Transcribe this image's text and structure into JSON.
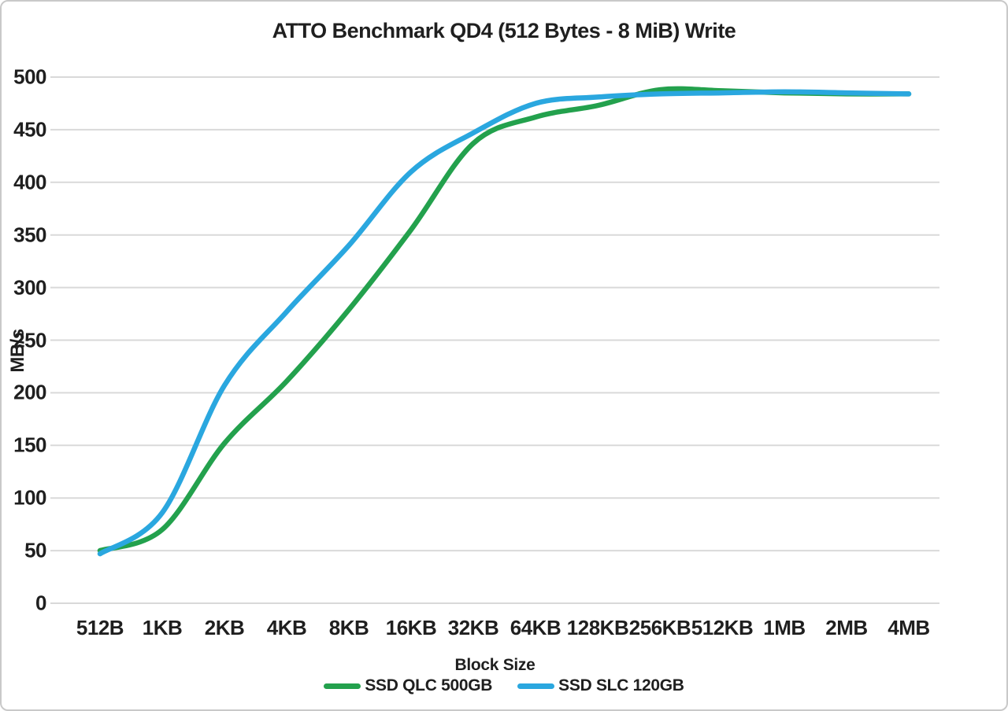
{
  "chart_data": {
    "type": "line",
    "title": "ATTO Benchmark QD4 (512 Bytes - 8 MiB) Write",
    "xlabel": "Block Size",
    "ylabel": "MB/s",
    "categories": [
      "512B",
      "1KB",
      "2KB",
      "4KB",
      "8KB",
      "16KB",
      "32KB",
      "64KB",
      "128KB",
      "256KB",
      "512KB",
      "1MB",
      "2MB",
      "4MB"
    ],
    "series": [
      {
        "name": "SSD QLC 500GB",
        "color": "#23a14d",
        "values": [
          50,
          70,
          152,
          211,
          279,
          355,
          437,
          462,
          473,
          488,
          487,
          485,
          484,
          484
        ]
      },
      {
        "name": "SSD SLC 120GB",
        "color": "#2aa7df",
        "values": [
          47,
          86,
          207,
          277,
          340,
          410,
          447,
          475,
          481,
          484,
          485,
          486,
          485,
          484
        ]
      }
    ],
    "ylim": [
      0,
      500
    ],
    "ytick_step": 50,
    "yticks": [
      "0",
      "50",
      "100",
      "150",
      "200",
      "250",
      "300",
      "350",
      "400",
      "450",
      "500"
    ],
    "grid": true,
    "legend_position": "bottom",
    "gridline_color": "#d9d9d9",
    "text_color": "#1f1f1f",
    "background_color": "#ffffff"
  }
}
